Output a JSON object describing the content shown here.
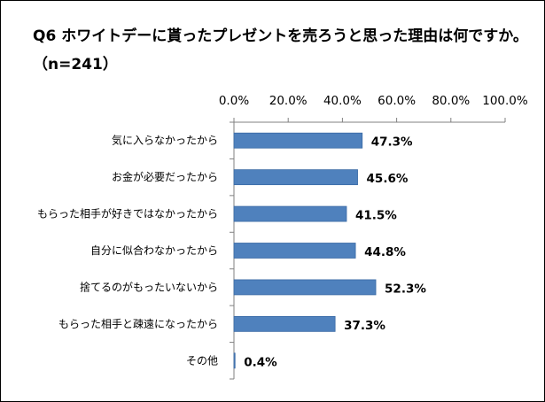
{
  "chart_data": {
    "type": "bar",
    "orientation": "horizontal",
    "title": "Q6 ホワイトデーに貰ったプレゼントを売ろうと思った理由は何ですか。（n=241）",
    "categories": [
      "気に入らなかったから",
      "お金が必要だったから",
      "もらった相手が好きではなかったから",
      "自分に似合わなかったから",
      "捨てるのがもったいないから",
      "もらった相手と疎遠になったから",
      "その他"
    ],
    "values": [
      47.3,
      45.6,
      41.5,
      44.8,
      52.3,
      37.3,
      0.4
    ],
    "data_labels": [
      "47.3%",
      "45.6%",
      "41.5%",
      "44.8%",
      "52.3%",
      "37.3%",
      "0.4%"
    ],
    "xlim": [
      0,
      100
    ],
    "x_ticks": [
      0,
      20,
      40,
      60,
      80,
      100
    ],
    "x_tick_labels": [
      "0.0%",
      "20.0%",
      "40.0%",
      "60.0%",
      "80.0%",
      "100.0%"
    ],
    "x_axis_position": "top",
    "grid": false,
    "legend": "none",
    "bar_color": "#4f81bd",
    "bar_border_color": "#3a6aa5"
  }
}
